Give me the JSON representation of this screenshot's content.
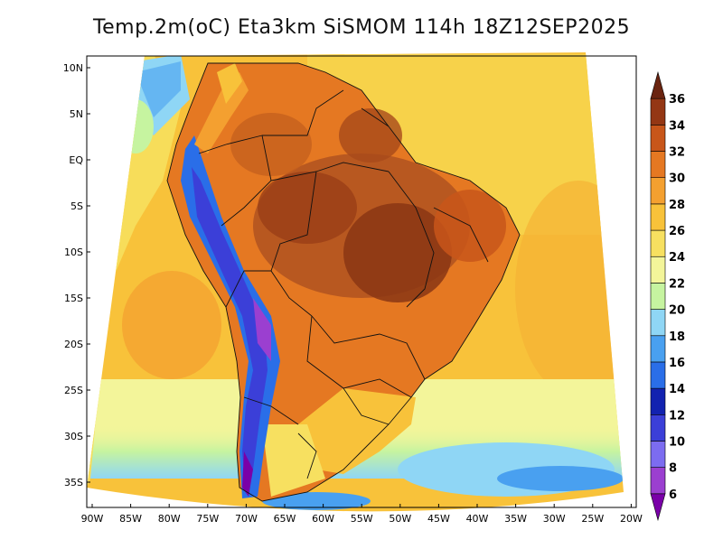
{
  "title": "Temp.2m(oC) Eta3km SiSMOM 114h 18Z12SEP2025",
  "map": {
    "lat_labels": [
      "10N",
      "5N",
      "EQ",
      "5S",
      "10S",
      "15S",
      "20S",
      "25S",
      "30S",
      "35S"
    ],
    "lon_labels": [
      "90W",
      "85W",
      "80W",
      "75W",
      "70W",
      "65W",
      "60W",
      "55W",
      "50W",
      "45W",
      "40W",
      "35W",
      "30W",
      "25W",
      "20W"
    ]
  },
  "colorbar": {
    "levels": [
      "6",
      "8",
      "10",
      "12",
      "14",
      "16",
      "18",
      "20",
      "22",
      "24",
      "26",
      "28",
      "30",
      "32",
      "34",
      "36"
    ],
    "colors": [
      "#7a00a8",
      "#9b3fd0",
      "#7c6cf0",
      "#3b3fd8",
      "#1222b0",
      "#2a6ee8",
      "#49a0f0",
      "#8fd6f5",
      "#c6f4a0",
      "#f3f59a",
      "#f7e060",
      "#f8c23a",
      "#f4a030",
      "#e57822",
      "#c8561a",
      "#943714",
      "#6a2410"
    ]
  }
}
